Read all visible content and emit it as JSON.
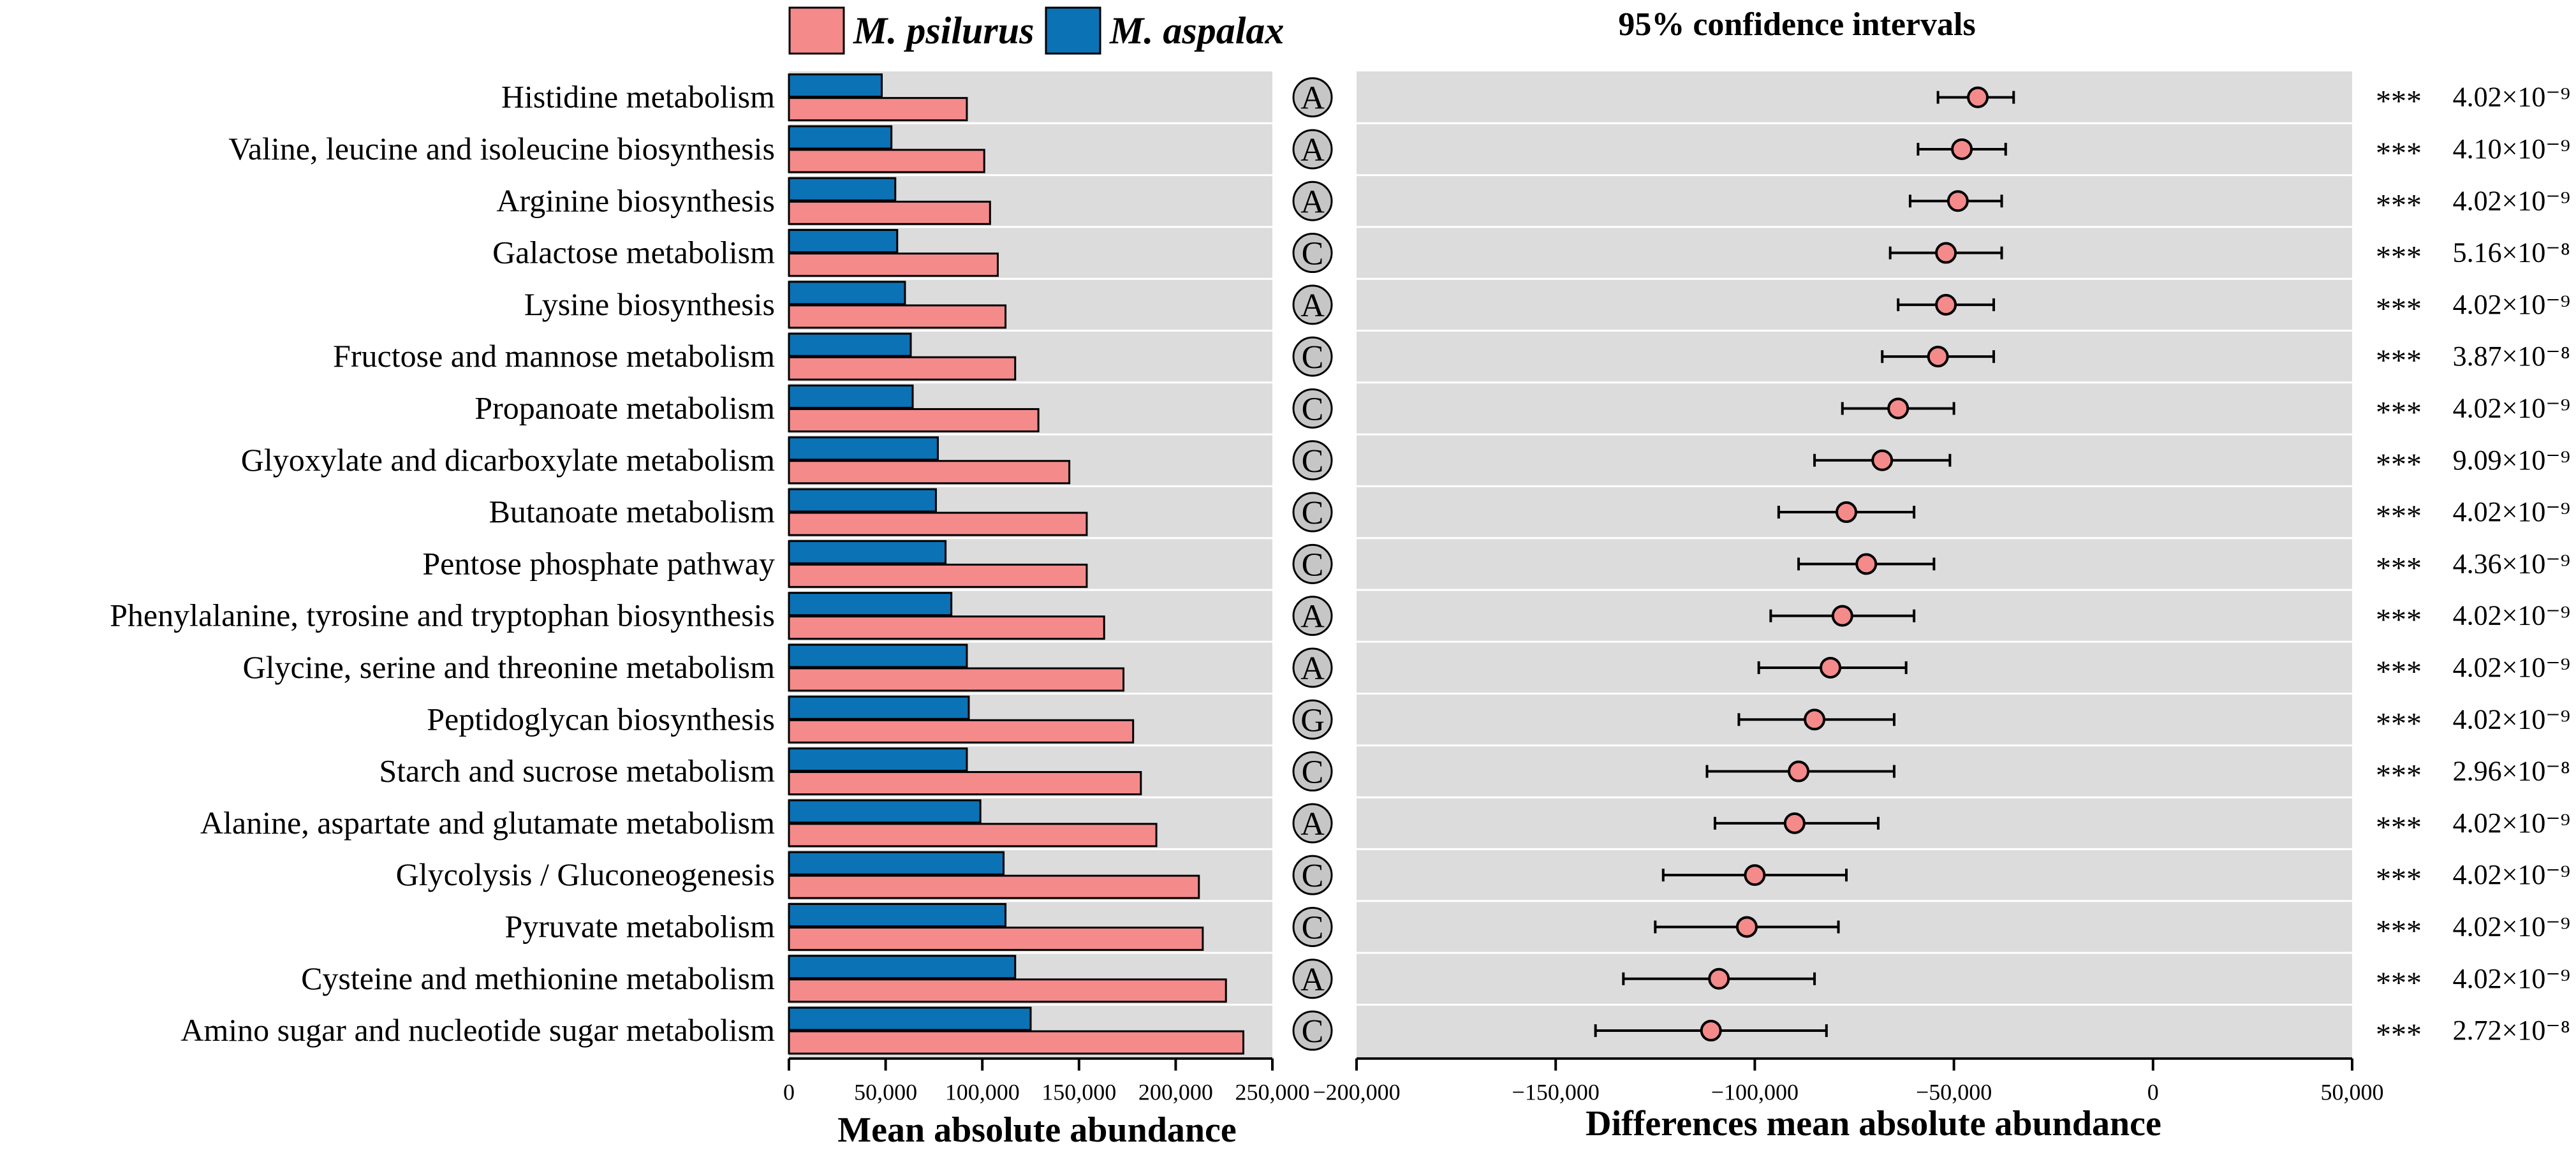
{
  "chart_data": [
    {
      "type": "bar",
      "orientation": "horizontal",
      "xlabel": "Mean absolute abundance",
      "xlim": [
        0,
        250000
      ],
      "xticks": [
        "0",
        "50,000",
        "100,000",
        "150,000",
        "200,000",
        "250,000"
      ],
      "xtick_values": [
        0,
        50000,
        100000,
        150000,
        200000,
        250000
      ],
      "legend": [
        {
          "name": "M. psilurus",
          "color": "#f48a8a"
        },
        {
          "name": "M. aspalax",
          "color": "#0b72b5"
        }
      ],
      "categories": [
        "Histidine metabolism",
        "Valine, leucine and isoleucine biosynthesis",
        "Arginine biosynthesis",
        "Galactose metabolism",
        "Lysine biosynthesis",
        "Fructose and mannose metabolism",
        "Propanoate metabolism",
        "Glyoxylate and dicarboxylate metabolism",
        "Butanoate metabolism",
        "Pentose phosphate pathway",
        "Phenylalanine, tyrosine and tryptophan biosynthesis",
        "Glycine, serine and threonine metabolism",
        "Peptidoglycan biosynthesis",
        "Starch and sucrose metabolism",
        "Alanine, aspartate and glutamate metabolism",
        "Glycolysis / Gluconeogenesis",
        "Pyruvate metabolism",
        "Cysteine and methionine metabolism",
        "Amino sugar and nucleotide sugar metabolism"
      ],
      "category_codes": [
        "A",
        "A",
        "A",
        "C",
        "A",
        "C",
        "C",
        "C",
        "C",
        "C",
        "A",
        "A",
        "G",
        "C",
        "A",
        "C",
        "C",
        "A",
        "C"
      ],
      "series": [
        {
          "name": "M. aspalax",
          "color": "#0b72b5",
          "values": [
            48000,
            53000,
            55000,
            56000,
            60000,
            63000,
            64000,
            77000,
            76000,
            81000,
            84000,
            92000,
            93000,
            92000,
            99000,
            111000,
            112000,
            117000,
            125000
          ]
        },
        {
          "name": "M. psilurus",
          "color": "#f48a8a",
          "values": [
            92000,
            101000,
            104000,
            108000,
            112000,
            117000,
            129000,
            145000,
            154000,
            154000,
            163000,
            173000,
            178000,
            182000,
            190000,
            212000,
            214000,
            226000,
            235000
          ]
        }
      ]
    },
    {
      "type": "scatter",
      "subtype": "forest",
      "title": "95% confidence intervals",
      "xlabel": "Differences mean absolute abundance",
      "xlim": [
        -200000,
        50000
      ],
      "xticks": [
        "−200,000",
        "−150,000",
        "−100,000",
        "−50,000",
        "0",
        "50,000"
      ],
      "xtick_values": [
        -200000,
        -150000,
        -100000,
        -50000,
        0,
        50000
      ],
      "color": "#f48a8a",
      "points": [
        {
          "diff": -44000,
          "lo": -54000,
          "hi": -35000,
          "sig": "***",
          "p": "4.02×10⁻⁹"
        },
        {
          "diff": -48000,
          "lo": -59000,
          "hi": -37000,
          "sig": "***",
          "p": "4.10×10⁻⁹"
        },
        {
          "diff": -49000,
          "lo": -61000,
          "hi": -38000,
          "sig": "***",
          "p": "4.02×10⁻⁹"
        },
        {
          "diff": -52000,
          "lo": -66000,
          "hi": -38000,
          "sig": "***",
          "p": "5.16×10⁻⁸"
        },
        {
          "diff": -52000,
          "lo": -64000,
          "hi": -40000,
          "sig": "***",
          "p": "4.02×10⁻⁹"
        },
        {
          "diff": -54000,
          "lo": -68000,
          "hi": -40000,
          "sig": "***",
          "p": "3.87×10⁻⁸"
        },
        {
          "diff": -64000,
          "lo": -78000,
          "hi": -50000,
          "sig": "***",
          "p": "4.02×10⁻⁹"
        },
        {
          "diff": -68000,
          "lo": -85000,
          "hi": -51000,
          "sig": "***",
          "p": "9.09×10⁻⁹"
        },
        {
          "diff": -77000,
          "lo": -94000,
          "hi": -60000,
          "sig": "***",
          "p": "4.02×10⁻⁹"
        },
        {
          "diff": -72000,
          "lo": -89000,
          "hi": -55000,
          "sig": "***",
          "p": "4.36×10⁻⁹"
        },
        {
          "diff": -78000,
          "lo": -96000,
          "hi": -60000,
          "sig": "***",
          "p": "4.02×10⁻⁹"
        },
        {
          "diff": -81000,
          "lo": -99000,
          "hi": -62000,
          "sig": "***",
          "p": "4.02×10⁻⁹"
        },
        {
          "diff": -85000,
          "lo": -104000,
          "hi": -65000,
          "sig": "***",
          "p": "4.02×10⁻⁹"
        },
        {
          "diff": -89000,
          "lo": -112000,
          "hi": -65000,
          "sig": "***",
          "p": "2.96×10⁻⁸"
        },
        {
          "diff": -90000,
          "lo": -110000,
          "hi": -69000,
          "sig": "***",
          "p": "4.02×10⁻⁹"
        },
        {
          "diff": -100000,
          "lo": -123000,
          "hi": -77000,
          "sig": "***",
          "p": "4.02×10⁻⁹"
        },
        {
          "diff": -102000,
          "lo": -125000,
          "hi": -79000,
          "sig": "***",
          "p": "4.02×10⁻⁹"
        },
        {
          "diff": -109000,
          "lo": -133000,
          "hi": -85000,
          "sig": "***",
          "p": "4.02×10⁻⁹"
        },
        {
          "diff": -111000,
          "lo": -140000,
          "hi": -82000,
          "sig": "***",
          "p": "2.72×10⁻⁸"
        }
      ]
    }
  ]
}
